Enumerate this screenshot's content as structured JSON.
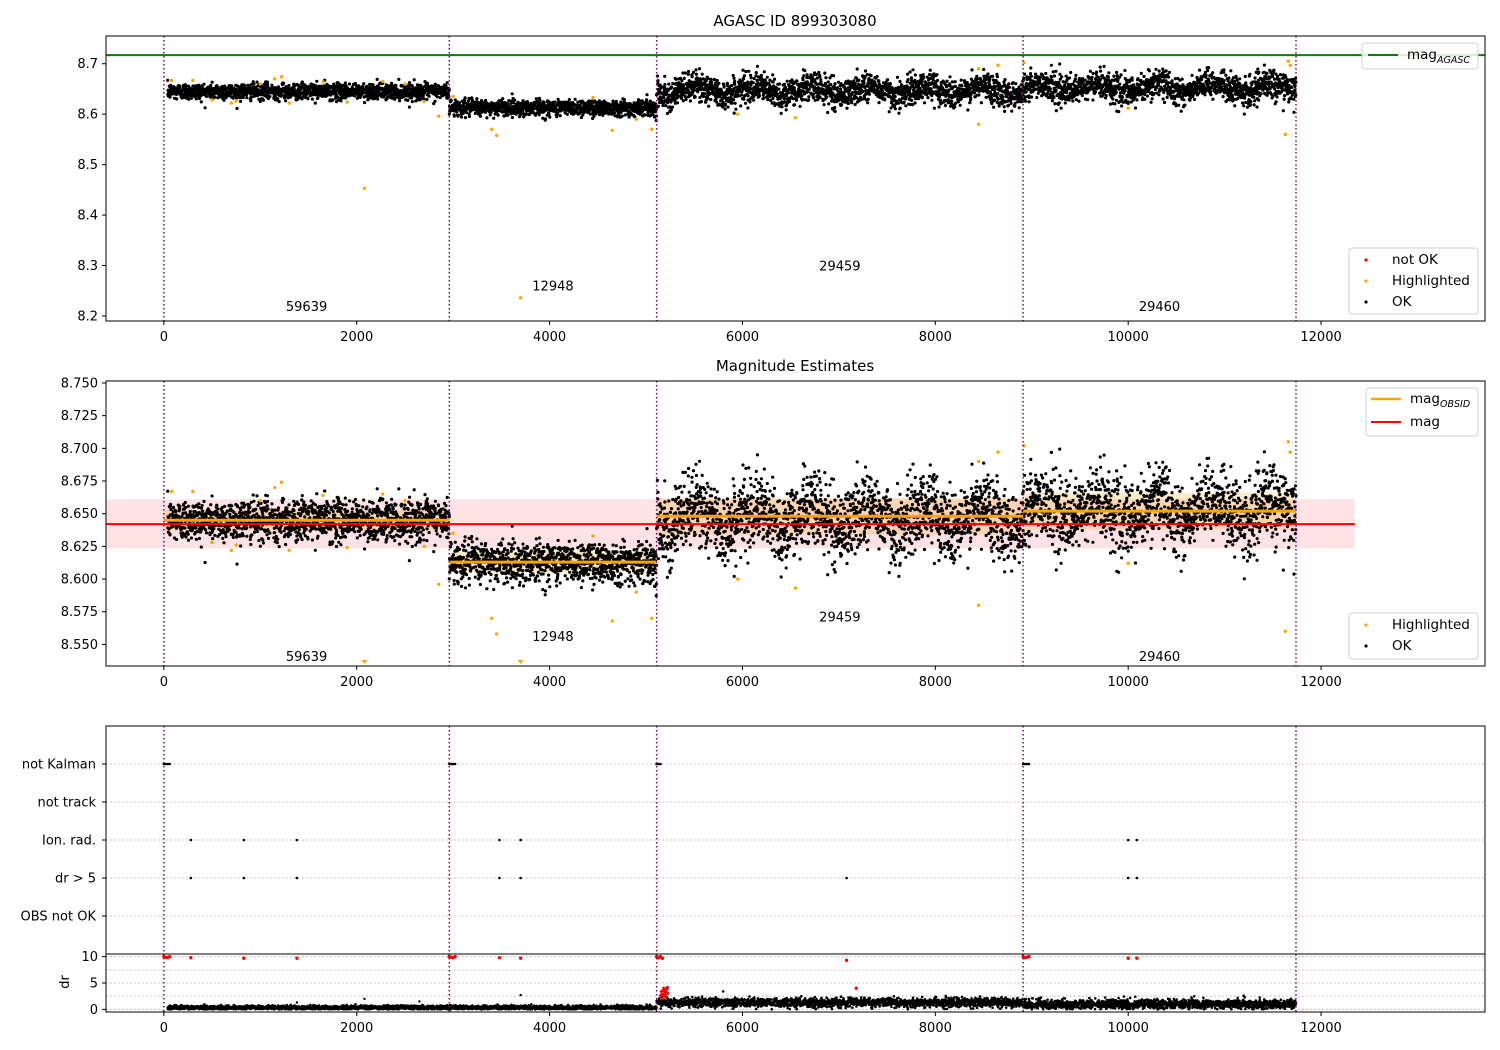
{
  "figure": {
    "colors": {
      "ok": "#000000",
      "highlighted": "#ffa500",
      "not_ok": "#ff0000",
      "mag_agasc": "#008000",
      "mag_obsid": "#ffa500",
      "mag": "#ff0000",
      "boundary": "#800080",
      "band": "#ffb6c1"
    }
  },
  "chart_data": [
    {
      "type": "scatter",
      "title": "AGASC ID 899303080",
      "xlim": [
        -600,
        13700
      ],
      "ylim": [
        8.19,
        8.755
      ],
      "xticks": [
        0,
        2000,
        4000,
        6000,
        8000,
        10000,
        12000
      ],
      "yticks": [
        8.2,
        8.3,
        8.4,
        8.5,
        8.6,
        8.7
      ],
      "xtick_labels": [
        "0",
        "2000",
        "4000",
        "6000",
        "8000",
        "10000",
        "12000"
      ],
      "ytick_labels": [
        "8.2",
        "8.3",
        "8.4",
        "8.5",
        "8.6",
        "8.7"
      ],
      "lines": [
        {
          "name": "mag",
          "subscript": "AGASC",
          "y": 8.717
        }
      ],
      "legends": [
        {
          "position": "upper-right",
          "entries": [
            {
              "name": "mag",
              "subscript": "AGASC",
              "kind": "line",
              "color": "#008000"
            }
          ]
        },
        {
          "position": "lower-right",
          "entries": [
            {
              "name": "not OK",
              "kind": "marker",
              "color": "#ff0000"
            },
            {
              "name": "Highlighted",
              "kind": "marker",
              "color": "#ffa500"
            },
            {
              "name": "OK",
              "kind": "marker",
              "color": "#000000"
            }
          ]
        }
      ],
      "boundaries": [
        0,
        2960,
        5110,
        8910,
        11740
      ],
      "obsid_labels": [
        {
          "text": "59639",
          "x": 1480,
          "y": 8.21
        },
        {
          "text": "12948",
          "x": 4035,
          "y": 8.25
        },
        {
          "text": "29459",
          "x": 7010,
          "y": 8.29
        },
        {
          "text": "29460",
          "x": 10325,
          "y": 8.21
        }
      ],
      "segments": [
        {
          "x": [
            40,
            2960
          ],
          "mean": 8.645,
          "spread": 0.008
        },
        {
          "x": [
            2960,
            5110
          ],
          "mean": 8.613,
          "spread": 0.008
        },
        {
          "x": [
            5110,
            8910
          ],
          "mean": 8.647,
          "spread": 0.014
        },
        {
          "x": [
            8910,
            11740
          ],
          "mean": 8.652,
          "spread": 0.014
        }
      ],
      "highlighted": [
        [
          80,
          8.667
        ],
        [
          300,
          8.667
        ],
        [
          500,
          8.628
        ],
        [
          700,
          8.622
        ],
        [
          750,
          8.626
        ],
        [
          1000,
          8.66
        ],
        [
          1150,
          8.67
        ],
        [
          1220,
          8.674
        ],
        [
          1300,
          8.622
        ],
        [
          1650,
          8.664
        ],
        [
          1900,
          8.624
        ],
        [
          2080,
          8.453
        ],
        [
          2270,
          8.665
        ],
        [
          2500,
          8.66
        ],
        [
          2700,
          8.625
        ],
        [
          2850,
          8.596
        ],
        [
          3000,
          8.635
        ],
        [
          3400,
          8.57
        ],
        [
          3450,
          8.558
        ],
        [
          3700,
          8.236
        ],
        [
          4450,
          8.633
        ],
        [
          4650,
          8.568
        ],
        [
          4900,
          8.59
        ],
        [
          5060,
          8.57
        ],
        [
          5950,
          8.6
        ],
        [
          6550,
          8.593
        ],
        [
          8450,
          8.58
        ],
        [
          8450,
          8.69
        ],
        [
          8650,
          8.697
        ],
        [
          8920,
          8.702
        ],
        [
          10000,
          8.612
        ],
        [
          11630,
          8.56
        ],
        [
          11660,
          8.705
        ],
        [
          11680,
          8.697
        ]
      ]
    },
    {
      "type": "scatter",
      "title": "Magnitude Estimates",
      "xlim": [
        -600,
        13700
      ],
      "ylim": [
        8.5335,
        8.7515
      ],
      "xticks": [
        0,
        2000,
        4000,
        6000,
        8000,
        10000,
        12000
      ],
      "yticks": [
        8.55,
        8.575,
        8.6,
        8.625,
        8.65,
        8.675,
        8.7,
        8.725,
        8.75
      ],
      "xtick_labels": [
        "0",
        "2000",
        "4000",
        "6000",
        "8000",
        "10000",
        "12000"
      ],
      "ytick_labels": [
        "8.550",
        "8.575",
        "8.600",
        "8.625",
        "8.650",
        "8.675",
        "8.700",
        "8.725",
        "8.750"
      ],
      "mag": {
        "name": "mag",
        "y": 8.642,
        "band": [
          8.6235,
          8.661
        ],
        "x": [
          -600,
          12350
        ]
      },
      "mag_obsid": [
        {
          "x": [
            0,
            2960
          ],
          "y": 8.645,
          "band": [
            8.637,
            8.653
          ]
        },
        {
          "x": [
            2960,
            5110
          ],
          "y": 8.613,
          "band": [
            8.605,
            8.621
          ]
        },
        {
          "x": [
            5110,
            8910
          ],
          "y": 8.648,
          "band": [
            8.634,
            8.662
          ]
        },
        {
          "x": [
            8910,
            11740
          ],
          "y": 8.652,
          "band": [
            8.638,
            8.666
          ]
        }
      ],
      "legends": [
        {
          "position": "upper-right",
          "entries": [
            {
              "name": "mag",
              "subscript": "OBSID",
              "kind": "line",
              "color": "#ffa500"
            },
            {
              "name": "mag",
              "kind": "line",
              "color": "#ff0000"
            }
          ]
        },
        {
          "position": "lower-right",
          "entries": [
            {
              "name": "Highlighted",
              "kind": "marker",
              "color": "#ffa500"
            },
            {
              "name": "OK",
              "kind": "marker",
              "color": "#000000"
            }
          ]
        }
      ],
      "boundaries": [
        0,
        2960,
        5110,
        8910,
        11740
      ],
      "obsid_labels": [
        {
          "text": "59639",
          "x": 1480,
          "y": 8.5375
        },
        {
          "text": "12948",
          "x": 4035,
          "y": 8.5525
        },
        {
          "text": "29459",
          "x": 7010,
          "y": 8.5675
        },
        {
          "text": "29460",
          "x": 10325,
          "y": 8.5375
        }
      ],
      "segments": [
        {
          "x": [
            40,
            2960
          ],
          "mean": 8.645,
          "spread": 0.008
        },
        {
          "x": [
            2960,
            5110
          ],
          "mean": 8.613,
          "spread": 0.008
        },
        {
          "x": [
            5110,
            8910
          ],
          "mean": 8.647,
          "spread": 0.014
        },
        {
          "x": [
            8910,
            11740
          ],
          "mean": 8.652,
          "spread": 0.014
        }
      ],
      "highlighted": [
        [
          80,
          8.667
        ],
        [
          300,
          8.667
        ],
        [
          500,
          8.628
        ],
        [
          700,
          8.622
        ],
        [
          750,
          8.626
        ],
        [
          1000,
          8.66
        ],
        [
          1150,
          8.67
        ],
        [
          1220,
          8.674
        ],
        [
          1300,
          8.622
        ],
        [
          1650,
          8.664
        ],
        [
          1900,
          8.624
        ],
        [
          2270,
          8.665
        ],
        [
          2500,
          8.66
        ],
        [
          2700,
          8.625
        ],
        [
          2850,
          8.596
        ],
        [
          3000,
          8.635
        ],
        [
          3400,
          8.57
        ],
        [
          3450,
          8.558
        ],
        [
          4450,
          8.633
        ],
        [
          4650,
          8.568
        ],
        [
          4900,
          8.59
        ],
        [
          5060,
          8.57
        ],
        [
          5950,
          8.6
        ],
        [
          6550,
          8.593
        ],
        [
          8450,
          8.58
        ],
        [
          8450,
          8.69
        ],
        [
          8650,
          8.697
        ],
        [
          8920,
          8.702
        ],
        [
          10000,
          8.612
        ],
        [
          11630,
          8.56
        ],
        [
          11660,
          8.705
        ],
        [
          11680,
          8.697
        ]
      ],
      "clipped_low": [
        2080,
        3700
      ]
    },
    {
      "type": "scatter",
      "title": "",
      "xlim": [
        -600,
        13700
      ],
      "categories": [
        "not Kalman",
        "not track",
        "Ion. rad.",
        "dr > 5",
        "OBS not OK"
      ],
      "flags": {
        "not Kalman": [
          0,
          20,
          40,
          60,
          2960,
          2980,
          3000,
          3020,
          5110,
          5130,
          5150,
          8910,
          8930,
          8950,
          8970
        ],
        "not track": [],
        "Ion. rad.": [
          280,
          830,
          1380,
          3480,
          3700,
          10000,
          10090
        ],
        "dr > 5": [
          280,
          830,
          1380,
          3480,
          3700,
          7080,
          10000,
          10090
        ],
        "OBS not OK": []
      },
      "boundaries": [
        0,
        2960,
        5110,
        8910,
        11740
      ]
    },
    {
      "type": "scatter",
      "title": "",
      "ylabel": "dr",
      "xlim": [
        -600,
        13700
      ],
      "ylim": [
        -0.5,
        10.5
      ],
      "xticks": [
        0,
        2000,
        4000,
        6000,
        8000,
        10000,
        12000
      ],
      "yticks": [
        0,
        5,
        10
      ],
      "xtick_labels": [
        "0",
        "2000",
        "4000",
        "6000",
        "8000",
        "10000",
        "12000"
      ],
      "ytick_labels": [
        "0",
        "5",
        "10"
      ],
      "gridlines": [
        0,
        2.5,
        5,
        7.5,
        10
      ],
      "segments": [
        {
          "x": [
            40,
            2960
          ],
          "mean": 0.35,
          "spread": 0.2
        },
        {
          "x": [
            2960,
            5110
          ],
          "mean": 0.35,
          "spread": 0.2
        },
        {
          "x": [
            5110,
            8910
          ],
          "mean": 1.3,
          "spread": 0.45
        },
        {
          "x": [
            8910,
            11740
          ],
          "mean": 1.0,
          "spread": 0.45
        }
      ],
      "red_points": [
        [
          0,
          10
        ],
        [
          20,
          9.9
        ],
        [
          40,
          9.8
        ],
        [
          60,
          10
        ],
        [
          280,
          9.8
        ],
        [
          830,
          9.7
        ],
        [
          1380,
          9.7
        ],
        [
          2960,
          10
        ],
        [
          2980,
          9.9
        ],
        [
          3000,
          9.8
        ],
        [
          3020,
          10
        ],
        [
          3480,
          9.8
        ],
        [
          3700,
          9.7
        ],
        [
          5110,
          10
        ],
        [
          5130,
          9.8
        ],
        [
          5150,
          10
        ],
        [
          5170,
          9.7
        ],
        [
          7080,
          9.3
        ],
        [
          7180,
          4.0
        ],
        [
          8910,
          10
        ],
        [
          8930,
          9.8
        ],
        [
          8950,
          9.9
        ],
        [
          8970,
          10
        ],
        [
          10000,
          9.7
        ],
        [
          10090,
          9.7
        ]
      ],
      "black_extras": [
        [
          1380,
          1.3
        ],
        [
          2080,
          2.0
        ],
        [
          2650,
          1.5
        ],
        [
          3700,
          2.7
        ],
        [
          5200,
          2.6
        ],
        [
          8450,
          1.8
        ]
      ],
      "boundaries": [
        0,
        2960,
        5110,
        8910,
        11740
      ]
    }
  ]
}
